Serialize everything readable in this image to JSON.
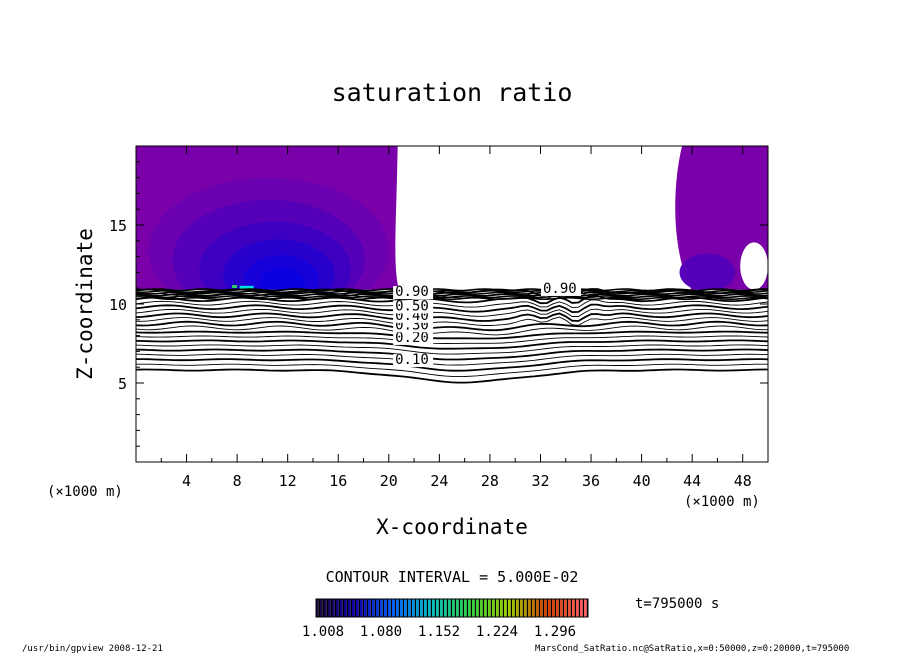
{
  "chart_data": {
    "type": "contour",
    "title": "saturation ratio",
    "xlabel": "X-coordinate",
    "ylabel": "Z-coordinate",
    "x_unit_left": "(×1000 m)",
    "x_unit_right": "(×1000 m)",
    "xlim": [
      0,
      50
    ],
    "ylim": [
      0,
      20
    ],
    "x_ticks": [
      4,
      8,
      12,
      16,
      20,
      24,
      28,
      32,
      36,
      40,
      44,
      48
    ],
    "y_ticks": [
      5,
      10,
      15
    ],
    "contour_interval_label": "CONTOUR INTERVAL = 5.000E-02",
    "time_label": "t=795000 s",
    "colorbar": {
      "tick_labels": [
        "1.008",
        "1.080",
        "1.152",
        "1.224",
        "1.296"
      ],
      "min": 1.008,
      "max": 1.296,
      "colors": [
        "#1a0a3a",
        "#0d00a8",
        "#0060ff",
        "#00c0c0",
        "#30d040",
        "#a0d000",
        "#d04000",
        "#ff6060"
      ]
    },
    "shaded_fill_colors": [
      "#7a00aa",
      "#6a00b0",
      "#5500b8",
      "#3d00c0",
      "#2800cc",
      "#1800d8",
      "#0b00e0"
    ],
    "contour_labels": [
      {
        "text": "0.10",
        "x": 20.5,
        "y": 6.2
      },
      {
        "text": "0.20",
        "x": 20.5,
        "y": 7.6
      },
      {
        "text": "0.30",
        "x": 20.5,
        "y": 8.4
      },
      {
        "text": "0.40",
        "x": 20.5,
        "y": 9.0
      },
      {
        "text": "0.50",
        "x": 20.5,
        "y": 9.6
      },
      {
        "text": "0.90",
        "x": 20.5,
        "y": 10.5
      },
      {
        "text": "0.90",
        "x": 32.2,
        "y": 10.7
      }
    ],
    "contour_levels": [
      0.1,
      0.15,
      0.2,
      0.25,
      0.3,
      0.35,
      0.4,
      0.45,
      0.5,
      0.55,
      0.6,
      0.65,
      0.7,
      0.75,
      0.8,
      0.85,
      0.9,
      0.95,
      1.0
    ]
  },
  "footer": {
    "left": "/usr/bin/gpview   2008-12-21",
    "right": "MarsCond_SatRatio.nc@SatRatio,x=0:50000,z=0:20000,t=795000"
  }
}
